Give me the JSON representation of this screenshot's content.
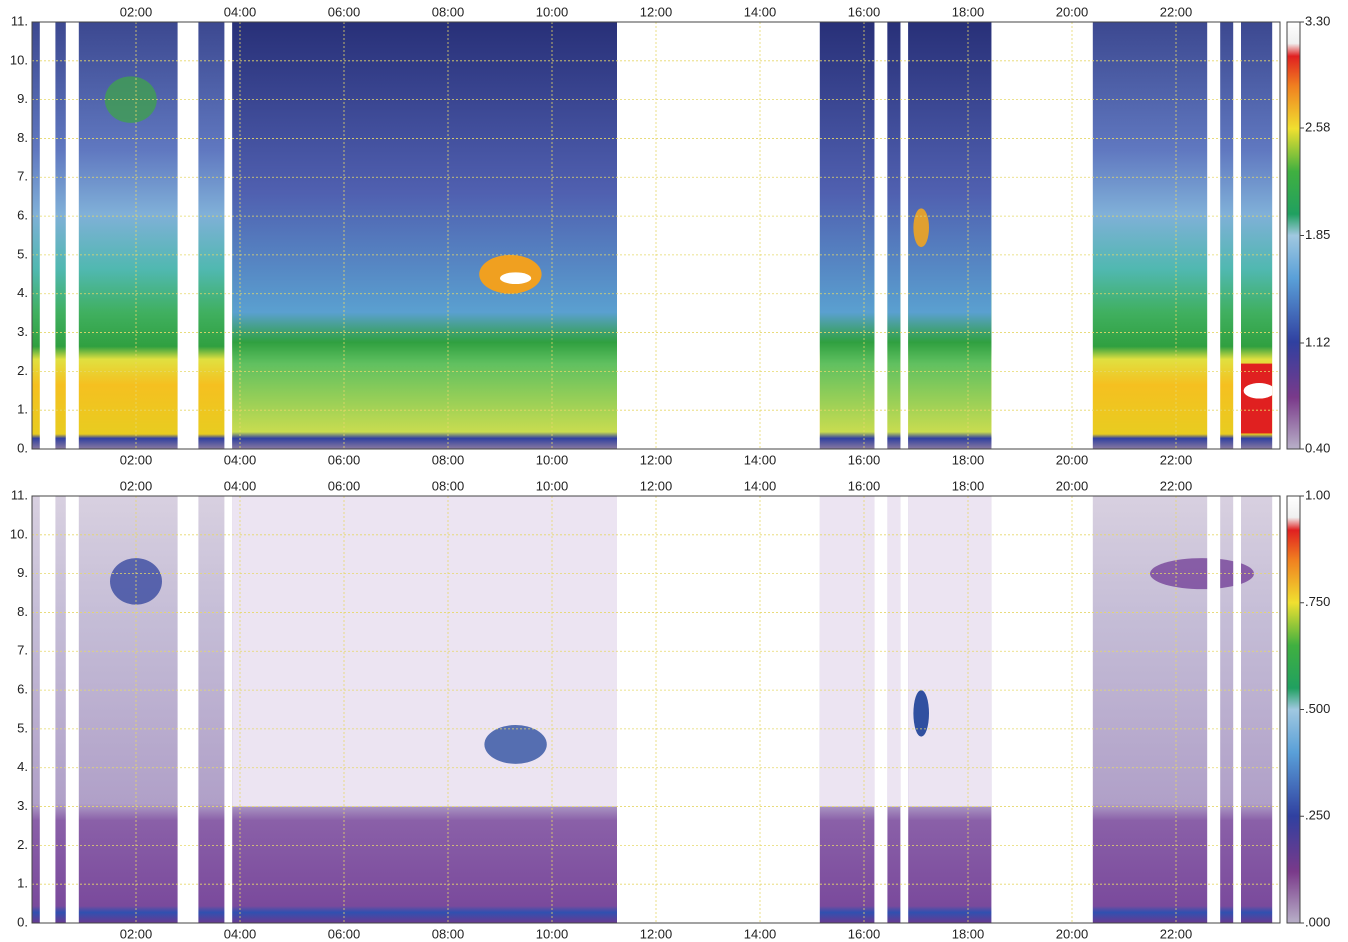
{
  "chart_data": [
    {
      "type": "heatmap",
      "xlim": [
        0,
        24
      ],
      "xticks": [
        {
          "value": 2,
          "label": "02:00"
        },
        {
          "value": 4,
          "label": "04:00"
        },
        {
          "value": 6,
          "label": "06:00"
        },
        {
          "value": 8,
          "label": "08:00"
        },
        {
          "value": 10,
          "label": "10:00"
        },
        {
          "value": 12,
          "label": "12:00"
        },
        {
          "value": 14,
          "label": "14:00"
        },
        {
          "value": 16,
          "label": "16:00"
        },
        {
          "value": 18,
          "label": "18:00"
        },
        {
          "value": 20,
          "label": "20:00"
        },
        {
          "value": 22,
          "label": "22:00"
        }
      ],
      "ylim": [
        0,
        11
      ],
      "yticks": [
        {
          "value": 0,
          "label": "0."
        },
        {
          "value": 1,
          "label": "1."
        },
        {
          "value": 2,
          "label": "2."
        },
        {
          "value": 3,
          "label": "3."
        },
        {
          "value": 4,
          "label": "4."
        },
        {
          "value": 5,
          "label": "5."
        },
        {
          "value": 6,
          "label": "6."
        },
        {
          "value": 7,
          "label": "7."
        },
        {
          "value": 8,
          "label": "8."
        },
        {
          "value": 9,
          "label": "9."
        },
        {
          "value": 10,
          "label": "10."
        },
        {
          "value": 11,
          "label": "11."
        }
      ],
      "grid": true,
      "colorbar": {
        "lim": [
          0.4,
          3.3
        ],
        "ticks": [
          {
            "value": 0.4,
            "label": "0.40"
          },
          1.12,
          1.85,
          2.58,
          {
            "value": 3.3,
            "label": "3.30"
          }
        ]
      }
    },
    {
      "type": "heatmap",
      "xlim": [
        0,
        24
      ],
      "xticks": [
        {
          "value": 2,
          "label": "02:00"
        },
        {
          "value": 4,
          "label": "04:00"
        },
        {
          "value": 6,
          "label": "06:00"
        },
        {
          "value": 8,
          "label": "08:00"
        },
        {
          "value": 10,
          "label": "10:00"
        },
        {
          "value": 12,
          "label": "12:00"
        },
        {
          "value": 14,
          "label": "14:00"
        },
        {
          "value": 16,
          "label": "16:00"
        },
        {
          "value": 18,
          "label": "18:00"
        },
        {
          "value": 20,
          "label": "20:00"
        },
        {
          "value": 22,
          "label": "22:00"
        }
      ],
      "ylim": [
        0,
        11
      ],
      "yticks": [
        {
          "value": 0,
          "label": "0."
        },
        {
          "value": 1,
          "label": "1."
        },
        {
          "value": 2,
          "label": "2."
        },
        {
          "value": 3,
          "label": "3."
        },
        {
          "value": 4,
          "label": "4."
        },
        {
          "value": 5,
          "label": "5."
        },
        {
          "value": 6,
          "label": "6."
        },
        {
          "value": 7,
          "label": "7."
        },
        {
          "value": 8,
          "label": "8."
        },
        {
          "value": 9,
          "label": "9."
        },
        {
          "value": 10,
          "label": "10."
        },
        {
          "value": 11,
          "label": "11."
        }
      ],
      "grid": true,
      "colorbar": {
        "lim": [
          0,
          1
        ],
        "ticks": [
          {
            "value": 0,
            "label": ".000"
          },
          {
            "value": 0.25,
            "label": ".250"
          },
          {
            "value": 0.5,
            "label": ".500"
          },
          {
            "value": 0.75,
            "label": ".750"
          },
          {
            "value": 1,
            "label": "1.00"
          }
        ]
      }
    }
  ]
}
